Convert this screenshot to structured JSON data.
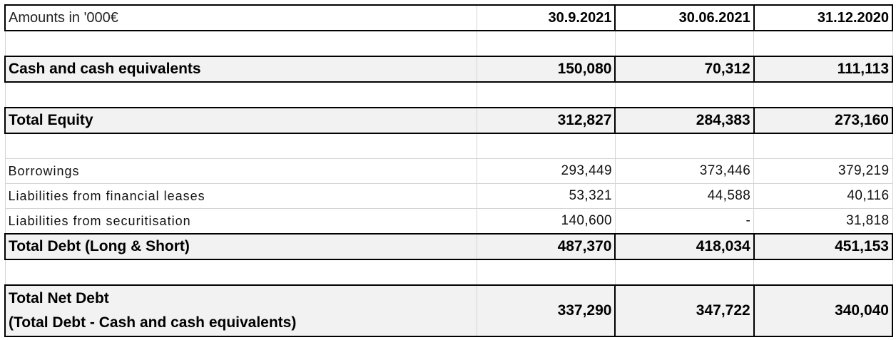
{
  "header": {
    "label": "Amounts in '000€",
    "columns": [
      "30.9.2021",
      "30.06.2021",
      "31.12.2020"
    ]
  },
  "rows": {
    "cash": {
      "label": "Cash and cash equivalents",
      "values": [
        "150,080",
        "70,312",
        "111,113"
      ]
    },
    "equity": {
      "label": "Total Equity",
      "values": [
        "312,827",
        "284,383",
        "273,160"
      ]
    },
    "borrowings": {
      "label": "Borrowings",
      "values": [
        "293,449",
        "373,446",
        "379,219"
      ]
    },
    "leases": {
      "label": "Liabilities from financial leases",
      "values": [
        "53,321",
        "44,588",
        "40,116"
      ]
    },
    "securitisation": {
      "label": "Liabilities from securitisation",
      "values": [
        "140,600",
        "-",
        "31,818"
      ]
    },
    "total_debt": {
      "label": "Total Debt (Long & Short)",
      "values": [
        "487,370",
        "418,034",
        "451,153"
      ]
    },
    "net_debt": {
      "label_line1": "Total Net Debt",
      "label_line2": "(Total Debt - Cash and cash equivalents)",
      "values": [
        "337,290",
        "347,722",
        "340,040"
      ]
    }
  }
}
